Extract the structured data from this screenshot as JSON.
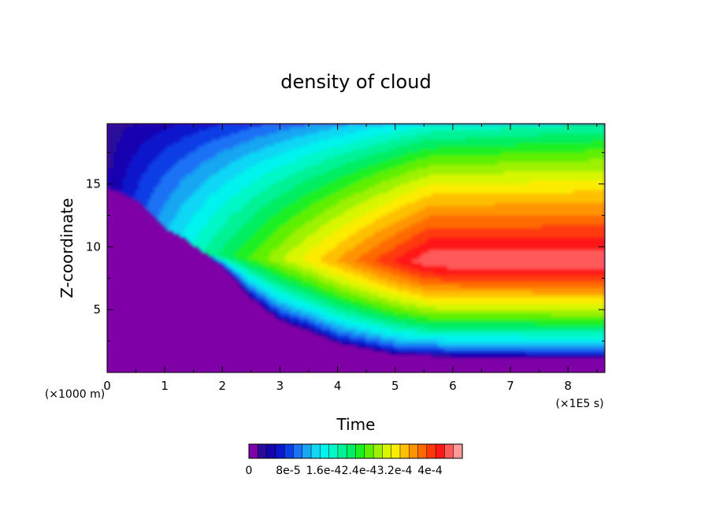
{
  "chart_data": {
    "type": "heatmap",
    "title": "density of cloud",
    "xlabel": "Time",
    "ylabel": "Z-coordinate",
    "x_unit": "(×1E5 s)",
    "y_unit": "(×1000 m)",
    "xlim": [
      0,
      8.64
    ],
    "ylim": [
      0,
      19.8
    ],
    "x_ticks": [
      0,
      1,
      2,
      3,
      4,
      5,
      6,
      7,
      8
    ],
    "y_ticks": [
      5,
      10,
      15
    ],
    "colorbar": {
      "labels": [
        "0",
        "8e-5",
        "1.6e-4",
        "2.4e-4",
        "3.2e-4",
        "4e-4"
      ],
      "label_texts": [
        "0",
        "8e-5",
        "1.6e-4",
        "2.4e-4",
        "3.2e-4",
        "4e-4"
      ],
      "min": 0,
      "max": 0.00044,
      "levels": 22,
      "colors": [
        "#7e00a6",
        "#2a0c9a",
        "#1405b0",
        "#0a18cc",
        "#0a3ee6",
        "#1a72f4",
        "#17a6f2",
        "#11d7f4",
        "#00f4ee",
        "#00f7c6",
        "#00f296",
        "#00ee62",
        "#1cf020",
        "#5ef000",
        "#9cf200",
        "#d8f600",
        "#fcec00",
        "#ffc000",
        "#ff9400",
        "#ff6a00",
        "#ff3a08",
        "#ff1818",
        "#ff5a5a",
        "#ff9a9a"
      ]
    },
    "series": [
      {
        "name": "",
        "x": [
          0,
          0.5,
          1.0,
          1.3,
          2.0,
          2.5,
          3.0,
          3.5,
          4.0,
          5.0,
          6.0,
          7.0,
          8.0,
          8.64
        ],
        "z_base": [
          14.8,
          13.8,
          11.5,
          10.8,
          8.5,
          6.0,
          4.2,
          3.4,
          2.4,
          1.5,
          1.3,
          1.3,
          1.2,
          1.2
        ]
      }
    ]
  }
}
